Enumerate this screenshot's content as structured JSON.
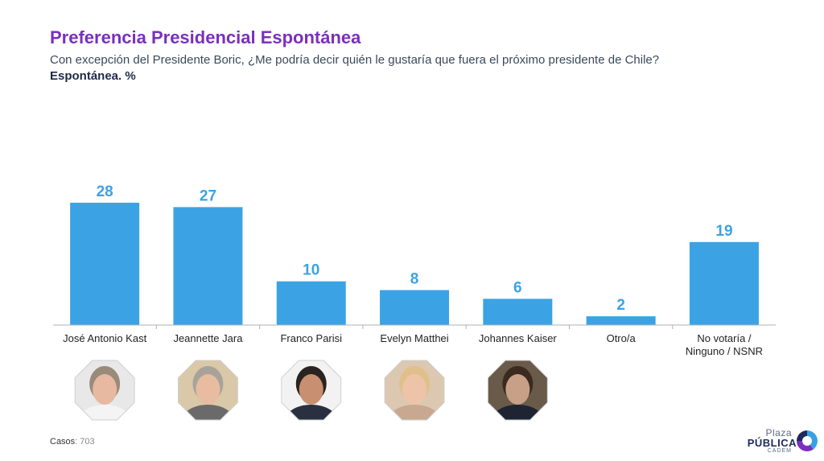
{
  "header": {
    "title": "Preferencia Presidencial Espontánea",
    "subtitle": "Con excepción del Presidente Boric, ¿Me podría decir quién le gustaría que fuera el próximo presidente de Chile?",
    "subtitle2": "Espontánea. %"
  },
  "chart_data": {
    "type": "bar",
    "categories": [
      "José Antonio Kast",
      "Jeannette Jara",
      "Franco Parisi",
      "Evelyn Matthei",
      "Johannes Kaiser",
      "Otro/a",
      "No votaría / Ninguno / NSNR"
    ],
    "category_lines": [
      [
        "José Antonio Kast"
      ],
      [
        "Jeannette Jara"
      ],
      [
        "Franco Parisi"
      ],
      [
        "Evelyn Matthei"
      ],
      [
        "Johannes Kaiser"
      ],
      [
        "Otro/a"
      ],
      [
        "No votaría /",
        "Ninguno / NSNR"
      ]
    ],
    "values": [
      28,
      27,
      10,
      8,
      6,
      2,
      19
    ],
    "ylim": [
      0,
      30
    ],
    "grid": false,
    "colors": {
      "bar": "#3ba3e4",
      "label": "#3ba3e4",
      "axis": "#b0b0b0"
    }
  },
  "photos": [
    {
      "name": "José Antonio Kast",
      "bg": "#e8e8e8",
      "skin": "#e6b9a0",
      "hair": "#9a8a7a",
      "shirt": "#f4f4f4"
    },
    {
      "name": "Jeannette Jara",
      "bg": "#d9c9a8",
      "skin": "#e8bca0",
      "hair": "#a8a39a",
      "shirt": "#6a6a6a"
    },
    {
      "name": "Franco Parisi",
      "bg": "#f2f2f2",
      "skin": "#c89070",
      "hair": "#2a2420",
      "shirt": "#2a3040"
    },
    {
      "name": "Evelyn Matthei",
      "bg": "#dcc8b0",
      "skin": "#eec4a8",
      "hair": "#e0c08a",
      "shirt": "#c8a890"
    },
    {
      "name": "Johannes Kaiser",
      "bg": "#6a5a4a",
      "skin": "#c8a088",
      "hair": "#3a2a20",
      "shirt": "#1e2432"
    }
  ],
  "footer": {
    "casos_label": "Casos",
    "casos_value": ": 703"
  },
  "logo": {
    "plaza": "Plaza",
    "publica": "PÚBLICA",
    "cadem": "CADEM"
  }
}
